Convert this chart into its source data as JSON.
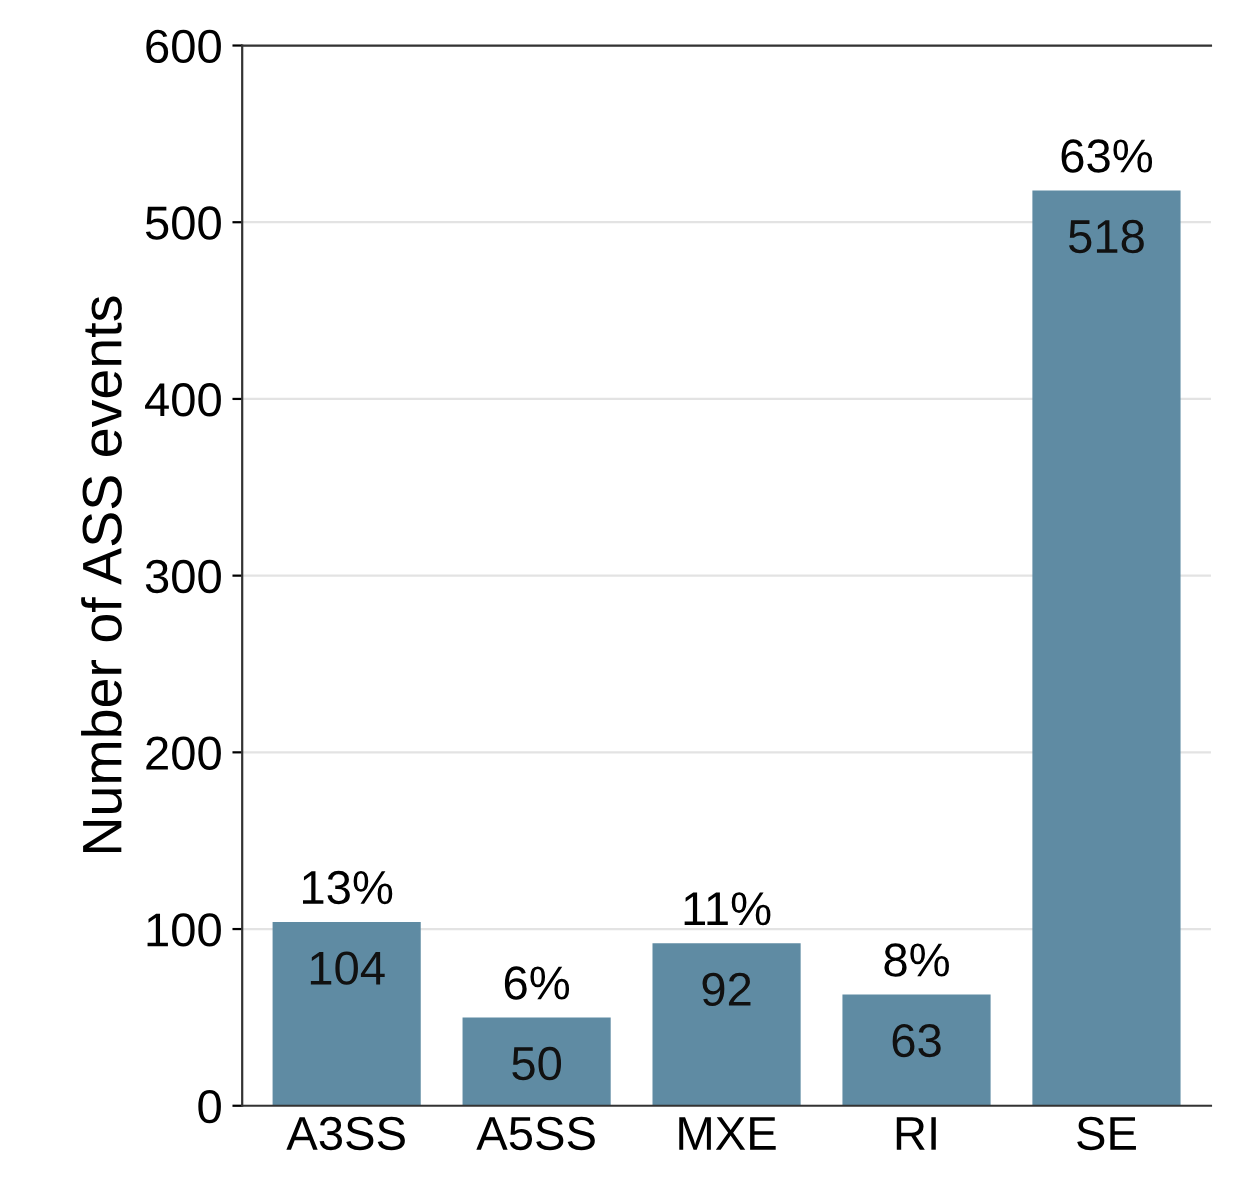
{
  "chart_data": {
    "type": "bar",
    "ylabel": "Number of ASS events",
    "categories": [
      "A3SS",
      "A5SS",
      "MXE",
      "RI",
      "SE"
    ],
    "values": [
      104,
      50,
      92,
      63,
      518
    ],
    "color": "#5f8ba3",
    "ylim": [
      0,
      600
    ],
    "yticks": [
      0,
      100,
      200,
      300,
      400,
      500,
      600
    ],
    "grid": "y",
    "data_labels": true,
    "annotations": [
      {
        "text": "13%",
        "x": "A3SS",
        "y": 104
      },
      {
        "text": "6%",
        "x": "A5SS",
        "y": 50
      },
      {
        "text": "11%",
        "x": "MXE",
        "y": 92
      },
      {
        "text": "8%",
        "x": "RI",
        "y": 63
      },
      {
        "text": "63%",
        "x": "SE",
        "y": 518
      }
    ]
  }
}
